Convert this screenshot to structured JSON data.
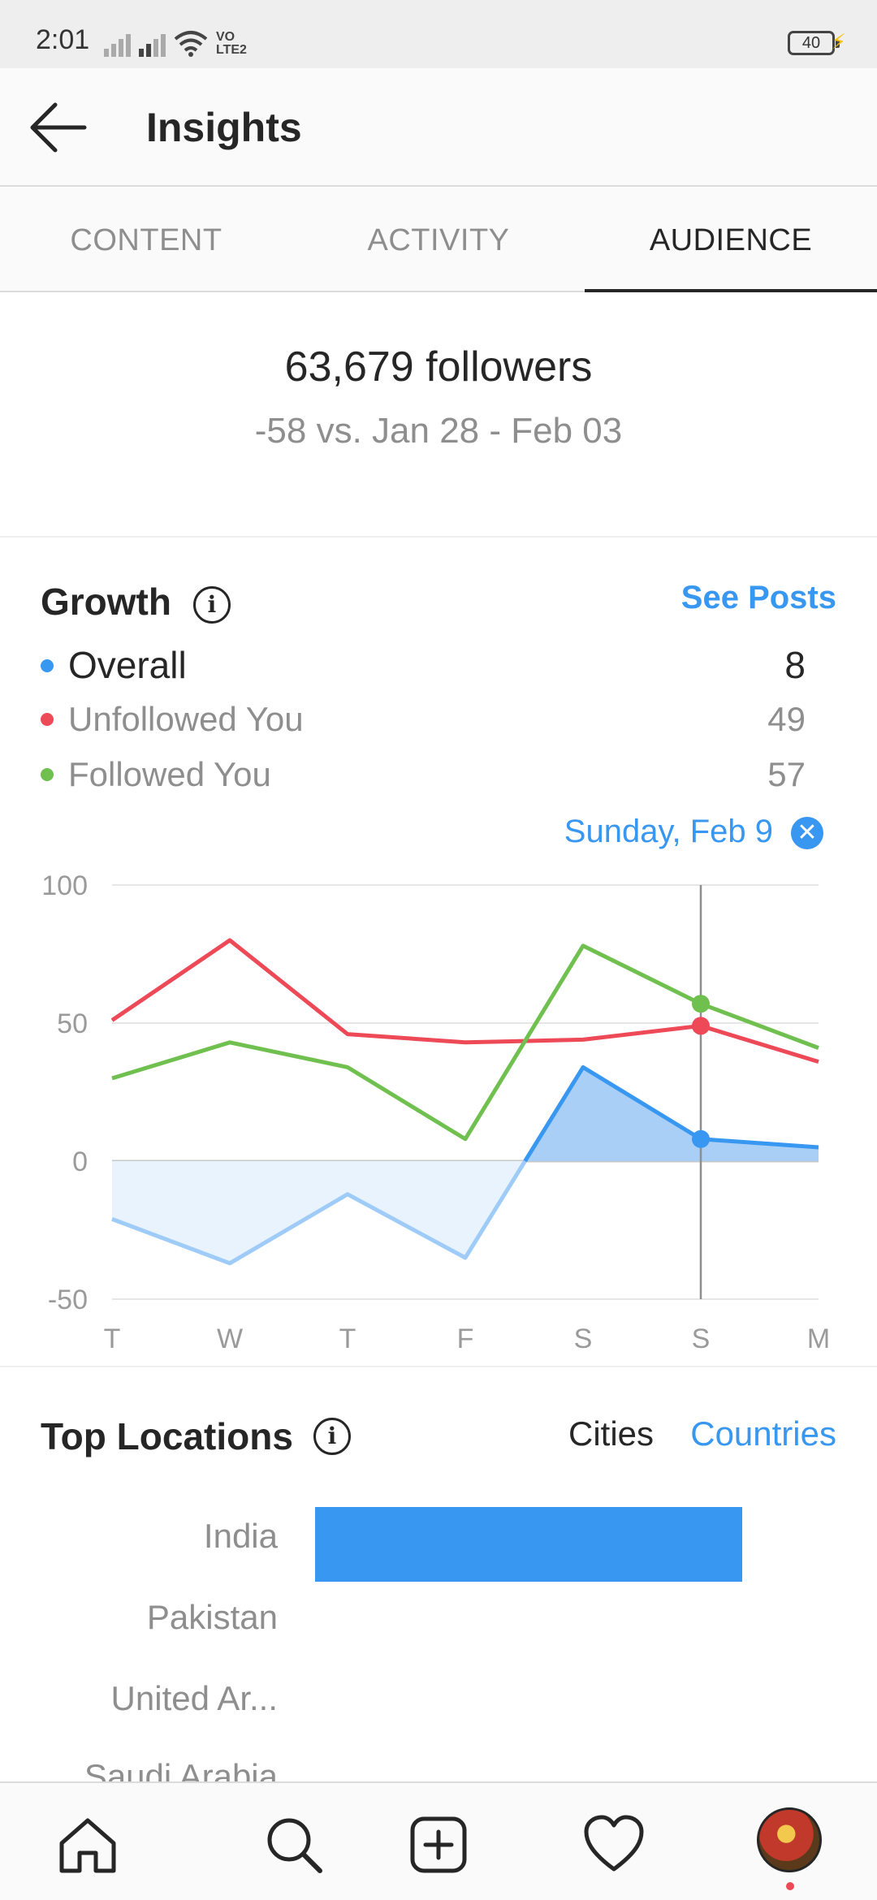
{
  "status_bar": {
    "time": "2:01",
    "network": "VO LTE2",
    "battery": "40"
  },
  "header": {
    "title": "Insights"
  },
  "tabs": [
    {
      "label": "CONTENT",
      "active": false
    },
    {
      "label": "ACTIVITY",
      "active": false
    },
    {
      "label": "AUDIENCE",
      "active": true
    }
  ],
  "summary": {
    "followers": "63,679 followers",
    "delta": "-58 vs. Jan 28 - Feb 03"
  },
  "growth": {
    "title": "Growth",
    "see_posts": "See Posts",
    "legend": [
      {
        "label": "Overall",
        "value": "8",
        "color": "#3897f0"
      },
      {
        "label": "Unfollowed You",
        "value": "49",
        "color": "#ed4956"
      },
      {
        "label": "Followed You",
        "value": "57",
        "color": "#70c050"
      }
    ],
    "selected_date": "Sunday, Feb 9"
  },
  "chart_data": {
    "type": "line",
    "categories": [
      "T",
      "W",
      "T",
      "F",
      "S",
      "S",
      "M"
    ],
    "ylim": [
      -50,
      100
    ],
    "yticks": [
      100,
      50,
      0,
      -50
    ],
    "grid": true,
    "selected_index": 5,
    "series": [
      {
        "name": "Overall",
        "color": "#3897f0",
        "values": [
          -21,
          -37,
          -12,
          -35,
          34,
          8,
          5
        ]
      },
      {
        "name": "Unfollowed You",
        "color": "#ed4956",
        "values": [
          51,
          80,
          46,
          43,
          44,
          49,
          36
        ]
      },
      {
        "name": "Followed You",
        "color": "#70c050",
        "values": [
          30,
          43,
          34,
          8,
          78,
          57,
          41
        ]
      }
    ]
  },
  "locations": {
    "title": "Top Locations",
    "toggle_cities": "Cities",
    "toggle_countries": "Countries",
    "items": [
      {
        "name": "India",
        "share": 1.0
      },
      {
        "name": "Pakistan",
        "share": 0
      },
      {
        "name": "United Ar...",
        "share": 0
      },
      {
        "name": "Saudi Arabia",
        "share": 0
      }
    ],
    "bar_color": "#3897f0"
  },
  "nav": {
    "icons": [
      "home-icon",
      "search-icon",
      "new-post-icon",
      "activity-heart-icon",
      "profile-avatar"
    ]
  }
}
